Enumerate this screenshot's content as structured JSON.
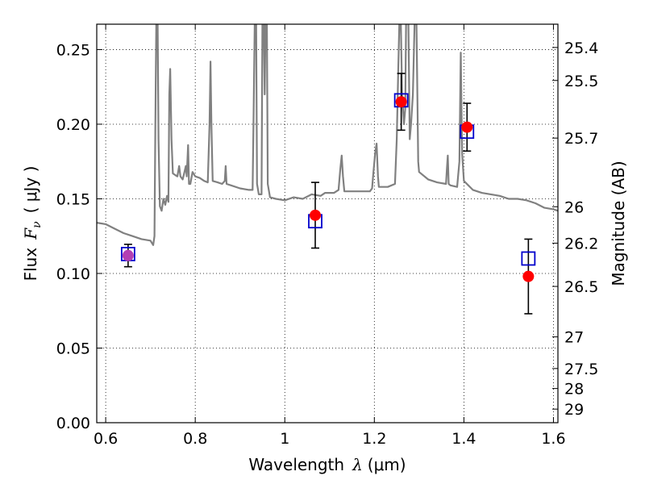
{
  "chart_data": {
    "type": "scatter",
    "xlabel": "Wavelength  λ (μm)",
    "ylabel": "Flux  F_ν ( μJy )",
    "ylabel_parts": {
      "prefix": "Flux",
      "symbol": "F",
      "subscript": "ν",
      "unit": "( μJy )"
    },
    "xlabel_parts": {
      "prefix": "Wavelength",
      "symbol": "λ",
      "unit": "(μm)"
    },
    "y2label": "Magnitude (AB)",
    "xlim": [
      0.58,
      1.61
    ],
    "ylim": [
      0.0,
      0.267
    ],
    "grid": true,
    "x_ticks": [
      0.6,
      0.8,
      1.0,
      1.2,
      1.4,
      1.6
    ],
    "x_tick_labels": [
      "0.6",
      "0.8",
      "1",
      "1.2",
      "1.4",
      "1.6"
    ],
    "y_ticks": [
      0.0,
      0.05,
      0.1,
      0.15,
      0.2,
      0.25
    ],
    "y_tick_labels": [
      "0.00",
      "0.05",
      "0.10",
      "0.15",
      "0.20",
      "0.25"
    ],
    "y2_ticks": [
      {
        "label": "25.4",
        "flux": 0.2514
      },
      {
        "label": "25.5",
        "flux": 0.2293
      },
      {
        "label": "25.7",
        "flux": 0.1907
      },
      {
        "label": "26",
        "flux": 0.1447
      },
      {
        "label": "26.2",
        "flux": 0.1203
      },
      {
        "label": "26.5",
        "flux": 0.0913
      },
      {
        "label": "27",
        "flux": 0.0575
      },
      {
        "label": "27.5",
        "flux": 0.0363
      },
      {
        "label": "28",
        "flux": 0.0229
      },
      {
        "label": "29",
        "flux": 0.0091
      }
    ],
    "series": [
      {
        "kind": "template_spectrum",
        "color": "#808080",
        "points": [
          [
            0.58,
            0.134
          ],
          [
            0.6,
            0.133
          ],
          [
            0.62,
            0.13
          ],
          [
            0.64,
            0.127
          ],
          [
            0.66,
            0.125
          ],
          [
            0.68,
            0.123
          ],
          [
            0.7,
            0.122
          ],
          [
            0.706,
            0.119
          ],
          [
            0.709,
            0.125
          ],
          [
            0.711,
            0.2
          ],
          [
            0.713,
            0.27
          ],
          [
            0.716,
            0.27
          ],
          [
            0.718,
            0.19
          ],
          [
            0.721,
            0.145
          ],
          [
            0.725,
            0.142
          ],
          [
            0.729,
            0.15
          ],
          [
            0.733,
            0.146
          ],
          [
            0.737,
            0.152
          ],
          [
            0.74,
            0.148
          ],
          [
            0.742,
            0.22
          ],
          [
            0.744,
            0.237
          ],
          [
            0.747,
            0.19
          ],
          [
            0.75,
            0.167
          ],
          [
            0.755,
            0.166
          ],
          [
            0.76,
            0.165
          ],
          [
            0.764,
            0.172
          ],
          [
            0.767,
            0.165
          ],
          [
            0.772,
            0.163
          ],
          [
            0.776,
            0.168
          ],
          [
            0.779,
            0.172
          ],
          [
            0.781,
            0.165
          ],
          [
            0.784,
            0.186
          ],
          [
            0.786,
            0.16
          ],
          [
            0.789,
            0.16
          ],
          [
            0.794,
            0.168
          ],
          [
            0.8,
            0.165
          ],
          [
            0.81,
            0.164
          ],
          [
            0.82,
            0.162
          ],
          [
            0.828,
            0.161
          ],
          [
            0.832,
            0.2
          ],
          [
            0.834,
            0.242
          ],
          [
            0.836,
            0.2
          ],
          [
            0.839,
            0.162
          ],
          [
            0.85,
            0.161
          ],
          [
            0.86,
            0.16
          ],
          [
            0.866,
            0.162
          ],
          [
            0.868,
            0.172
          ],
          [
            0.87,
            0.16
          ],
          [
            0.88,
            0.159
          ],
          [
            0.9,
            0.157
          ],
          [
            0.92,
            0.156
          ],
          [
            0.928,
            0.156
          ],
          [
            0.93,
            0.2
          ],
          [
            0.933,
            0.27
          ],
          [
            0.936,
            0.27
          ],
          [
            0.938,
            0.16
          ],
          [
            0.942,
            0.153
          ],
          [
            0.948,
            0.153
          ],
          [
            0.95,
            0.27
          ],
          [
            0.953,
            0.27
          ],
          [
            0.955,
            0.22
          ],
          [
            0.957,
            0.27
          ],
          [
            0.96,
            0.27
          ],
          [
            0.962,
            0.16
          ],
          [
            0.967,
            0.151
          ],
          [
            0.98,
            0.15
          ],
          [
            1.0,
            0.149
          ],
          [
            1.02,
            0.151
          ],
          [
            1.04,
            0.15
          ],
          [
            1.06,
            0.153
          ],
          [
            1.08,
            0.152
          ],
          [
            1.09,
            0.154
          ],
          [
            1.11,
            0.154
          ],
          [
            1.12,
            0.156
          ],
          [
            1.124,
            0.17
          ],
          [
            1.127,
            0.179
          ],
          [
            1.13,
            0.165
          ],
          [
            1.133,
            0.155
          ],
          [
            1.15,
            0.155
          ],
          [
            1.17,
            0.155
          ],
          [
            1.19,
            0.155
          ],
          [
            1.195,
            0.157
          ],
          [
            1.198,
            0.168
          ],
          [
            1.202,
            0.181
          ],
          [
            1.205,
            0.187
          ],
          [
            1.208,
            0.165
          ],
          [
            1.21,
            0.158
          ],
          [
            1.23,
            0.158
          ],
          [
            1.246,
            0.16
          ],
          [
            1.25,
            0.19
          ],
          [
            1.253,
            0.23
          ],
          [
            1.256,
            0.27
          ],
          [
            1.259,
            0.27
          ],
          [
            1.262,
            0.22
          ],
          [
            1.266,
            0.2
          ],
          [
            1.269,
            0.21
          ],
          [
            1.271,
            0.27
          ],
          [
            1.276,
            0.27
          ],
          [
            1.279,
            0.19
          ],
          [
            1.282,
            0.2
          ],
          [
            1.286,
            0.22
          ],
          [
            1.29,
            0.27
          ],
          [
            1.294,
            0.27
          ],
          [
            1.298,
            0.175
          ],
          [
            1.3,
            0.168
          ],
          [
            1.32,
            0.163
          ],
          [
            1.34,
            0.161
          ],
          [
            1.36,
            0.16
          ],
          [
            1.362,
            0.17
          ],
          [
            1.364,
            0.179
          ],
          [
            1.366,
            0.16
          ],
          [
            1.37,
            0.159
          ],
          [
            1.385,
            0.158
          ],
          [
            1.39,
            0.175
          ],
          [
            1.393,
            0.248
          ],
          [
            1.396,
            0.18
          ],
          [
            1.4,
            0.162
          ],
          [
            1.42,
            0.156
          ],
          [
            1.44,
            0.154
          ],
          [
            1.46,
            0.153
          ],
          [
            1.48,
            0.152
          ],
          [
            1.5,
            0.15
          ],
          [
            1.52,
            0.15
          ],
          [
            1.54,
            0.149
          ],
          [
            1.56,
            0.147
          ],
          [
            1.58,
            0.144
          ],
          [
            1.6,
            0.143
          ],
          [
            1.61,
            0.142
          ]
        ]
      },
      {
        "kind": "model_photometry",
        "marker": "open-square",
        "color": "#0000cc",
        "points": [
          [
            0.65,
            0.113
          ],
          [
            1.068,
            0.135
          ],
          [
            1.26,
            0.216
          ],
          [
            1.407,
            0.195
          ],
          [
            1.544,
            0.11
          ]
        ]
      },
      {
        "kind": "observed_photometry",
        "marker": "filled-circle",
        "color": "#ff0000",
        "points": [
          {
            "x": 0.65,
            "y": 0.112,
            "err": 0.0075,
            "color": "#b33fb3"
          },
          {
            "x": 1.068,
            "y": 0.139,
            "err": 0.022,
            "color": "#ff0000"
          },
          {
            "x": 1.26,
            "y": 0.215,
            "err": 0.019,
            "color": "#ff0000"
          },
          {
            "x": 1.407,
            "y": 0.198,
            "err": 0.016,
            "color": "#ff0000"
          },
          {
            "x": 1.544,
            "y": 0.098,
            "err": 0.025,
            "color": "#ff0000"
          }
        ]
      }
    ]
  }
}
